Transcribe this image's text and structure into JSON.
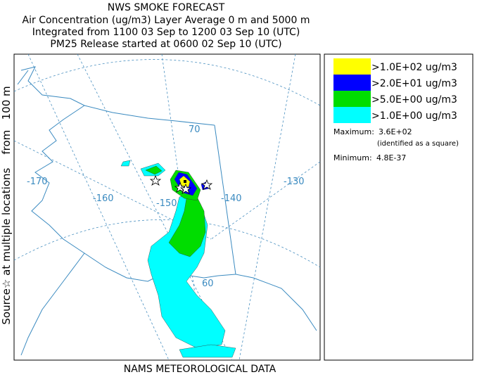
{
  "header": {
    "lines": [
      "NWS SMOKE FORECAST",
      "Air Concentration (ug/m3) Layer Average    0 m and  5000 m",
      "Integrated from 1100 03 Sep to 1200 03 Sep 10 (UTC)",
      "PM25 Release started at 0600 02 Sep 10 (UTC)"
    ]
  },
  "left_label": "Source☆ at multiple locations    from   100 m",
  "footer": "NAMS METEOROLOGICAL DATA",
  "legend": {
    "entries": [
      {
        "label": ">1.0E+02 ug/m3",
        "color": "#ffff00"
      },
      {
        "label": ">2.0E+01 ug/m3",
        "color": "#0000ff"
      },
      {
        "label": ">5.0E+00 ug/m3",
        "color": "#00dd00"
      },
      {
        "label": ">1.0E+00 ug/m3",
        "color": "#00ffff"
      }
    ]
  },
  "stats": {
    "max_label": "Maximum:",
    "max_value": "3.6E+02",
    "max_note": "(identified as a square)",
    "min_label": "Minimum:",
    "min_value": "4.8E-37"
  },
  "map": {
    "labels": [
      "-170",
      "-160",
      "-150",
      "-140",
      "-130",
      "70",
      "60"
    ]
  }
}
